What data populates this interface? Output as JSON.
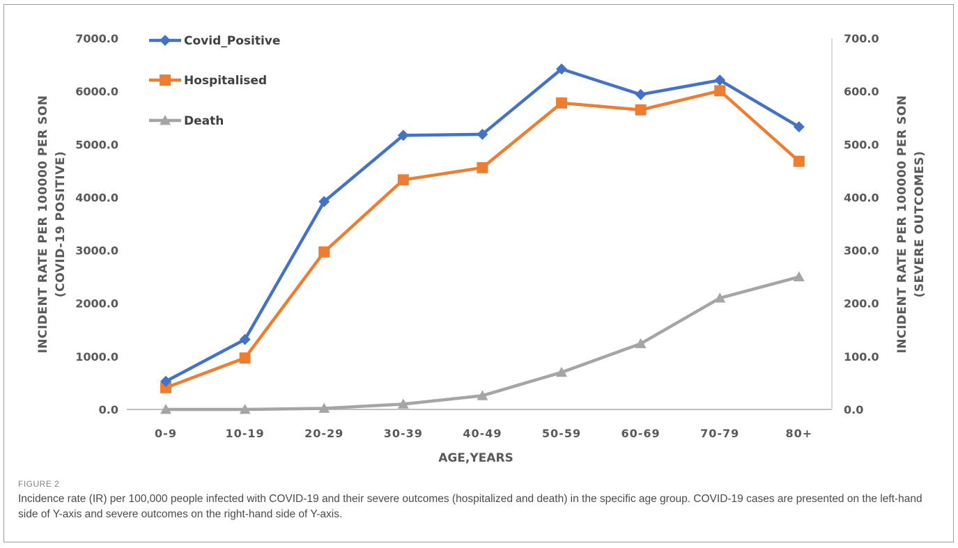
{
  "figure": {
    "label": "FIGURE 2",
    "caption": "Incidence rate (IR) per 100,000 people infected with COVID-19 and their severe outcomes (hospitalized and death) in the specific age group. COVID-19 cases are presented on the left-hand side of Y-axis and severe outcomes on the right-hand side of Y-axis."
  },
  "chart_data": {
    "type": "line",
    "categories": [
      "0-9",
      "10-19",
      "20-29",
      "30-39",
      "40-49",
      "50-59",
      "60-69",
      "70-79",
      "80+"
    ],
    "xlabel": "AGE,YEARS",
    "ylabel_left": [
      "INCIDENT RATE PER 100000 PER SON",
      "(COVID-19 POSITIVE)"
    ],
    "ylabel_right": [
      "INCIDENT RATE PER 100000 PER SON",
      "(SEVERE OUTCOMES)"
    ],
    "ylim_left": [
      0,
      7000
    ],
    "ylim_right": [
      0,
      700
    ],
    "yticks_left": [
      "0.0",
      "1000.0",
      "2000.0",
      "3000.0",
      "4000.0",
      "5000.0",
      "6000.0",
      "7000.0"
    ],
    "yticks_right": [
      "0.0",
      "100.0",
      "200.0",
      "300.0",
      "400.0",
      "500.0",
      "600.0",
      "700.0"
    ],
    "grid": false,
    "legend_position": "top-left",
    "series": [
      {
        "name": "Covid_Positive",
        "axis": "left",
        "color": "#4472C4",
        "marker": "diamond",
        "values": [
          530,
          1320,
          3920,
          5170,
          5190,
          6420,
          5940,
          6210,
          5330
        ]
      },
      {
        "name": "Hospitalised",
        "axis": "right",
        "color": "#ED7D31",
        "marker": "square",
        "values": [
          41,
          97,
          297,
          433,
          456,
          578,
          565,
          601,
          468
        ]
      },
      {
        "name": "Death",
        "axis": "right",
        "color": "#A5A5A5",
        "marker": "triangle",
        "values": [
          0,
          0,
          2,
          10,
          26,
          70,
          124,
          210,
          250
        ]
      }
    ]
  }
}
